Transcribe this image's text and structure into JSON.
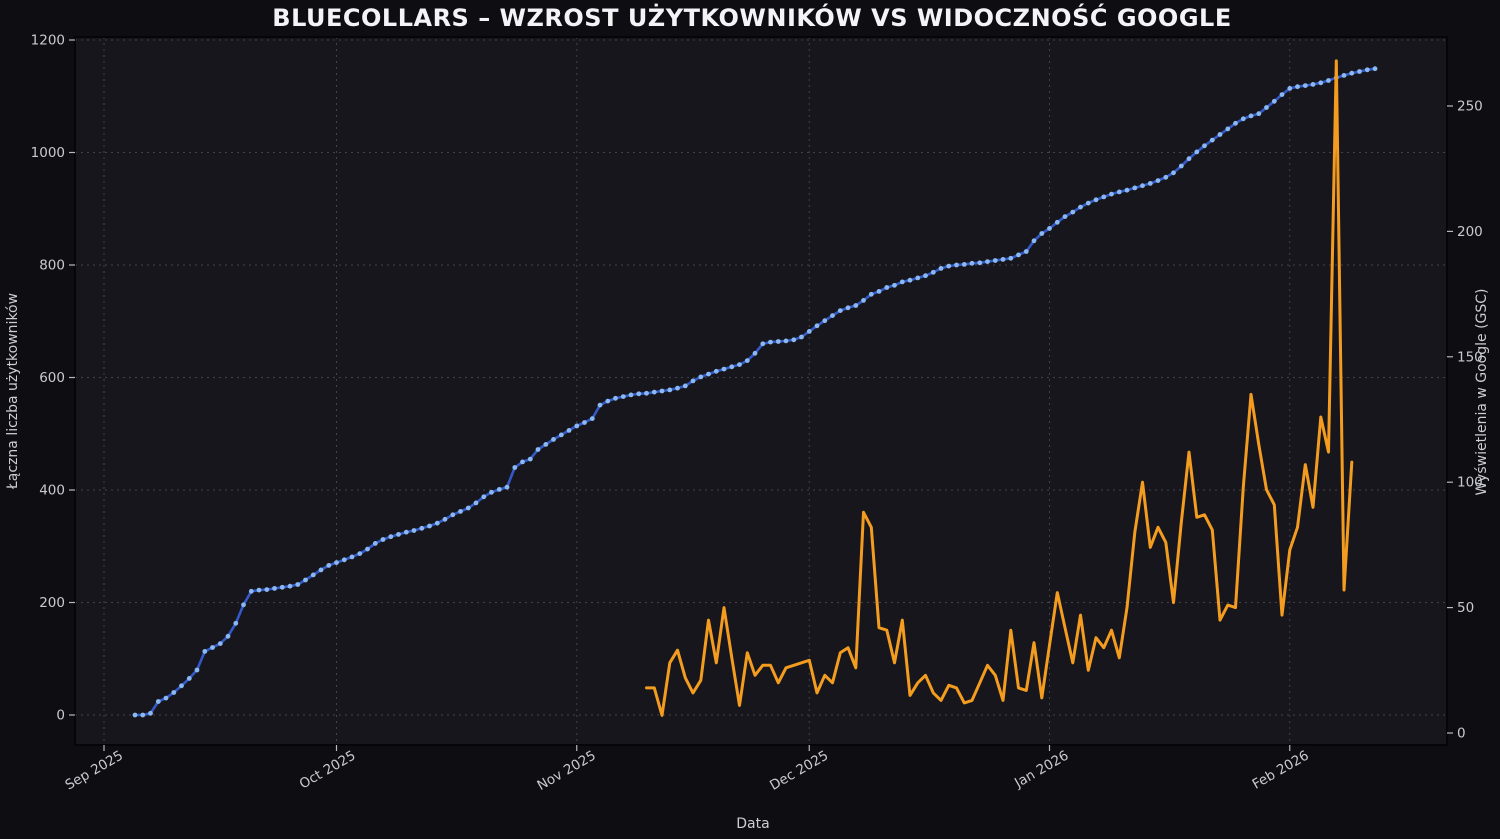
{
  "chart_data": {
    "type": "line",
    "title": "BLUECOLLARS – WZROST UŻYTKOWNIKÓW VS WIDOCZNOŚĆ GOOGLE",
    "xlabel": "Data",
    "ylabel_left": "Łączna liczba użytkowników",
    "ylabel_right": "Wyświetlenia w Google (GSC)",
    "x_tick_labels": [
      "Sep 2025",
      "Oct 2025",
      "Nov 2025",
      "Dec 2025",
      "Jan 2026",
      "Feb 2026"
    ],
    "x_tick_day_offsets": [
      0,
      30,
      61,
      91,
      122,
      153
    ],
    "y_left_ticks": [
      0,
      200,
      400,
      600,
      800,
      1000,
      1200
    ],
    "y_right_ticks": [
      0,
      50,
      100,
      150,
      200,
      250
    ],
    "y_left_lim": [
      -53,
      1205
    ],
    "y_right_lim": [
      -5,
      278
    ],
    "grid": true,
    "legend_position": "none",
    "series": [
      {
        "name": "users-cumulative",
        "axis": "left",
        "start_day_offset": 4,
        "start_label": "2025-09-05",
        "marker": "circle",
        "values": [
          0,
          0,
          3,
          24,
          30,
          40,
          52,
          65,
          80,
          113,
          120,
          127,
          140,
          163,
          196,
          220,
          222,
          223,
          225,
          227,
          229,
          232,
          240,
          249,
          258,
          266,
          271,
          276,
          281,
          287,
          295,
          305,
          312,
          317,
          321,
          325,
          328,
          332,
          336,
          341,
          348,
          356,
          362,
          368,
          377,
          388,
          396,
          401,
          405,
          440,
          450,
          455,
          472,
          481,
          490,
          498,
          506,
          514,
          520,
          527,
          551,
          558,
          563,
          566,
          569,
          571,
          572,
          574,
          576,
          578,
          581,
          585,
          594,
          601,
          606,
          611,
          615,
          619,
          623,
          630,
          643,
          660,
          663,
          664,
          665,
          667,
          672,
          682,
          692,
          701,
          710,
          719,
          724,
          728,
          737,
          748,
          753,
          760,
          764,
          770,
          773,
          777,
          781,
          787,
          794,
          798,
          800,
          801,
          803,
          804,
          806,
          808,
          810,
          812,
          818,
          824,
          843,
          856,
          865,
          876,
          886,
          894,
          903,
          910,
          916,
          921,
          926,
          930,
          933,
          937,
          941,
          945,
          950,
          956,
          964,
          976,
          989,
          1001,
          1012,
          1022,
          1032,
          1042,
          1052,
          1060,
          1065,
          1069,
          1080,
          1091,
          1103,
          1114,
          1117,
          1119,
          1121,
          1124,
          1128,
          1133,
          1137,
          1141,
          1144,
          1147,
          1149
        ]
      },
      {
        "name": "google-impressions",
        "axis": "right",
        "start_day_offset": 70,
        "start_label": "2025-11-10",
        "marker": "none",
        "values": [
          18,
          18,
          7,
          28,
          33,
          22,
          16,
          21,
          45,
          28,
          50,
          30,
          11,
          32,
          23,
          27,
          27,
          20,
          26,
          27,
          28,
          29,
          16,
          23,
          20,
          32,
          34,
          26,
          88,
          82,
          42,
          41,
          28,
          45,
          15,
          20,
          23,
          16,
          13,
          19,
          18,
          12,
          13,
          20,
          27,
          23,
          13,
          41,
          18,
          17,
          36,
          14,
          35,
          56,
          42,
          28,
          47,
          25,
          38,
          34,
          41,
          30,
          50,
          80,
          100,
          74,
          82,
          76,
          52,
          84,
          112,
          86,
          87,
          81,
          45,
          51,
          50,
          98,
          135,
          115,
          97,
          91,
          47,
          73,
          82,
          107,
          90,
          126,
          112,
          268,
          57,
          108
        ]
      }
    ]
  },
  "colors": {
    "figure_background": "#0d0d12",
    "plot_background": "#16161c",
    "grid": "#41414b",
    "spine": "#060609",
    "tick_mark": "#b9b9c2",
    "tick_label": "#c9c9d1",
    "axis_label": "#cdcdd5",
    "title": "#f4f4f6",
    "users_line": "#3558c8",
    "users_marker": "#8ab9f2",
    "impressions_line": "#f39c1f"
  }
}
